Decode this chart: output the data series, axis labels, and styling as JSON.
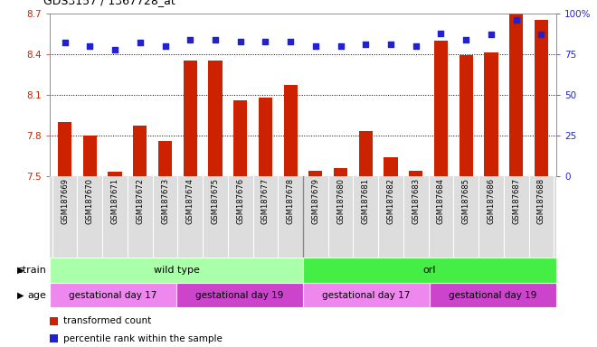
{
  "title": "GDS3157 / 1367728_at",
  "samples": [
    "GSM187669",
    "GSM187670",
    "GSM187671",
    "GSM187672",
    "GSM187673",
    "GSM187674",
    "GSM187675",
    "GSM187676",
    "GSM187677",
    "GSM187678",
    "GSM187679",
    "GSM187680",
    "GSM187681",
    "GSM187682",
    "GSM187683",
    "GSM187684",
    "GSM187685",
    "GSM187686",
    "GSM187687",
    "GSM187688"
  ],
  "bar_values": [
    7.9,
    7.8,
    7.53,
    7.87,
    7.76,
    8.35,
    8.35,
    8.06,
    8.08,
    8.17,
    7.54,
    7.56,
    7.83,
    7.64,
    7.54,
    8.5,
    8.39,
    8.41,
    8.7,
    8.65
  ],
  "dot_values": [
    82,
    80,
    78,
    82,
    80,
    84,
    84,
    83,
    83,
    83,
    80,
    80,
    81,
    81,
    80,
    88,
    84,
    87,
    96,
    87
  ],
  "ylim_left": [
    7.5,
    8.7
  ],
  "ylim_right": [
    0,
    100
  ],
  "yticks_left": [
    7.5,
    7.8,
    8.1,
    8.4,
    8.7
  ],
  "yticks_right": [
    0,
    25,
    50,
    75,
    100
  ],
  "bar_color": "#cc2200",
  "dot_color": "#2222cc",
  "hline_values": [
    7.8,
    8.1,
    8.4
  ],
  "strain_groups": [
    {
      "label": "wild type",
      "start": 0,
      "end": 10,
      "color": "#aaffaa"
    },
    {
      "label": "orl",
      "start": 10,
      "end": 20,
      "color": "#44ee44"
    }
  ],
  "age_groups": [
    {
      "label": "gestational day 17",
      "start": 0,
      "end": 5,
      "color": "#ee88ee"
    },
    {
      "label": "gestational day 19",
      "start": 5,
      "end": 10,
      "color": "#cc44cc"
    },
    {
      "label": "gestational day 17",
      "start": 10,
      "end": 15,
      "color": "#ee88ee"
    },
    {
      "label": "gestational day 19",
      "start": 15,
      "end": 20,
      "color": "#cc44cc"
    }
  ],
  "legend_items": [
    {
      "label": "transformed count",
      "color": "#cc2200"
    },
    {
      "label": "percentile rank within the sample",
      "color": "#2222cc"
    }
  ],
  "strain_label": "strain",
  "age_label": "age",
  "background_color": "#ffffff",
  "plot_bg_color": "#ffffff",
  "border_color": "#aaaaaa"
}
